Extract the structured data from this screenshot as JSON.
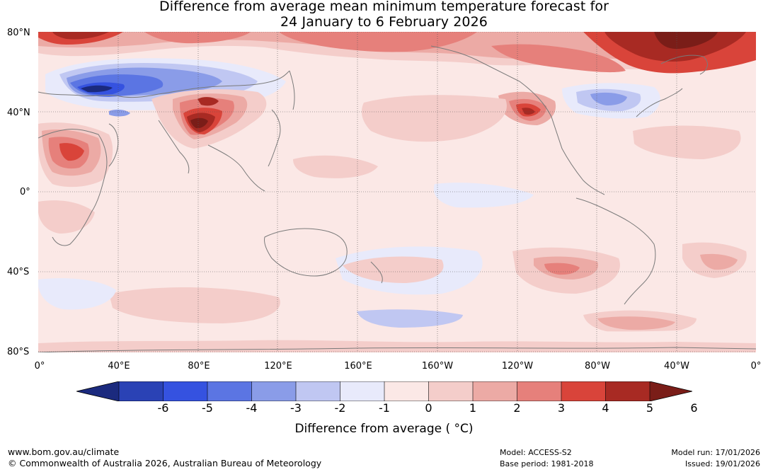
{
  "title": {
    "line1": "Difference from average mean minimum temperature forecast for",
    "line2": "24 January to 6 February 2026"
  },
  "map": {
    "lat_labels": [
      "80°N",
      "40°N",
      "0°",
      "40°S",
      "80°S"
    ],
    "lon_labels": [
      "0°",
      "40°E",
      "80°E",
      "120°E",
      "160°E",
      "160°W",
      "120°W",
      "80°W",
      "40°W",
      "0°"
    ]
  },
  "legend": {
    "ticks": [
      "-6",
      "-5",
      "-4",
      "-3",
      "-2",
      "-1",
      "0",
      "1",
      "2",
      "3",
      "4",
      "5",
      "6"
    ],
    "title": "Difference from average ( °C)",
    "colors": [
      "#1b2a7e",
      "#2a42b5",
      "#3552e0",
      "#5b75e3",
      "#8a9ce8",
      "#c0c7f2",
      "#e8eafb",
      "#fbe8e6",
      "#f4cdca",
      "#ecaaa5",
      "#e6807b",
      "#d9443a",
      "#a82a23",
      "#7a1d18"
    ]
  },
  "footer": {
    "website": "www.bom.gov.au/climate",
    "copyright": "© Commonwealth of Australia 2026, Australian Bureau of Meteorology",
    "model": "Model: ACCESS-S2",
    "base_period": "Base period: 1981-2018",
    "model_run": "Model run: 17/01/2026",
    "issued": "Issued: 19/01/2026"
  }
}
